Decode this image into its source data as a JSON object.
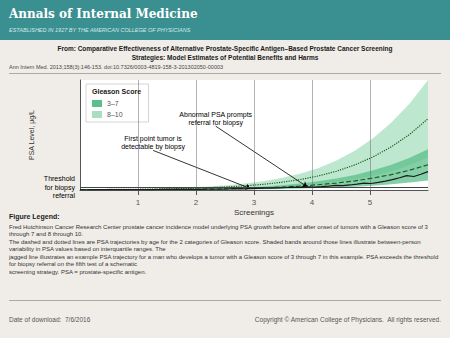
{
  "chart_data": {
    "type": "line",
    "header_title": "Annals of Internal Medicine",
    "header_subtitle": "ESTABLISHED IN 1927 BY THE AMERICAN COLLEGE OF PHYSICIANS",
    "title_lines": [
      "From: Comparative Effectiveness of Alternative Prostate-Specific Antigen–Based Prostate Cancer Screening",
      "Strategies: Model Estimates of Potential Benefits and Harms"
    ],
    "citation": "Ann Intern Med. 2013;158(3):146-153. doi:10.7326/0003-4819-158-3-201302050-00003",
    "xlabel": "Screenings",
    "ylabel": "PSA Level, μg/L",
    "xlim": [
      0,
      6
    ],
    "xticks": [
      1,
      2,
      3,
      4,
      5
    ],
    "ylim": [
      0,
      14
    ],
    "tick_labels": "x",
    "grid": false,
    "legend": "upper left",
    "legend_title": "Gleason Score",
    "background_color": "#f0ede8",
    "header_color": "#3a9090",
    "separator_color": "#aaaaaa",
    "screening_line_color": "#666666",
    "threshold": {
      "value": 0.38,
      "label_lines": [
        "Threshold",
        "for biopsy",
        "referral"
      ],
      "color": "#444444"
    },
    "annotations": [
      "Abnormal PSA prompts\nreferral for biopsy",
      "First point tumor is\ndetectable by biopsy"
    ],
    "series": [
      {
        "name": "3–7",
        "type": "band",
        "color": "#5bbf8a",
        "x": [
          0,
          0.315789,
          0.631579,
          0.947368,
          1.263158,
          1.578947,
          1.894737,
          2.210526,
          2.526316,
          2.842105,
          3.157895,
          3.473684,
          3.789474,
          4.105263,
          4.421053,
          4.736842,
          5.052632,
          5.368421,
          5.684211,
          6
        ],
        "lower": [
          0.02,
          0.02,
          0.02,
          0.03,
          0.03,
          0.04,
          0.04,
          0.05,
          0.06,
          0.08,
          0.1,
          0.14,
          0.18,
          0.24,
          0.32,
          0.42,
          0.55,
          0.72,
          0.94,
          1.22
        ],
        "upper": [
          0.06,
          0.07,
          0.08,
          0.09,
          0.1,
          0.12,
          0.15,
          0.18,
          0.24,
          0.32,
          0.44,
          0.6,
          0.82,
          1.1,
          1.45,
          1.9,
          2.5,
          3.2,
          4.1,
          5.2
        ]
      },
      {
        "name": "8–10",
        "type": "band",
        "color": "#a8dfc0",
        "x": [
          0,
          0.315789,
          0.631579,
          0.947368,
          1.263158,
          1.578947,
          1.894737,
          2.210526,
          2.526316,
          2.842105,
          3.157895,
          3.473684,
          3.789474,
          4.105263,
          4.421053,
          4.736842,
          5.052632,
          5.368421,
          5.684211,
          6
        ],
        "lower": [
          0.03,
          0.03,
          0.04,
          0.05,
          0.06,
          0.08,
          0.1,
          0.14,
          0.18,
          0.24,
          0.32,
          0.44,
          0.58,
          0.78,
          1.04,
          1.38,
          1.82,
          2.4,
          3.16,
          4.14
        ],
        "upper": [
          0.08,
          0.09,
          0.11,
          0.14,
          0.18,
          0.24,
          0.32,
          0.44,
          0.6,
          0.82,
          1.12,
          1.52,
          2.06,
          2.78,
          3.74,
          5.0,
          6.6,
          8.6,
          11.0,
          14.0
        ]
      },
      {
        "type": "line",
        "line_style": "dashed",
        "color": "#1a5c1a",
        "x": [
          0,
          0.315789,
          0.631579,
          0.947368,
          1.263158,
          1.578947,
          1.894737,
          2.210526,
          2.526316,
          2.842105,
          3.157895,
          3.473684,
          3.789474,
          4.105263,
          4.421053,
          4.736842,
          5.052632,
          5.368421,
          5.684211,
          6
        ],
        "values": [
          0.04,
          0.04,
          0.05,
          0.06,
          0.065,
          0.08,
          0.09,
          0.11,
          0.15,
          0.2,
          0.27,
          0.37,
          0.5,
          0.67,
          0.88,
          1.16,
          1.52,
          1.96,
          2.52,
          3.21
        ]
      },
      {
        "type": "line",
        "line_style": "dotted",
        "color": "#1a5c1a",
        "x": [
          0,
          0.315789,
          0.631579,
          0.947368,
          1.263158,
          1.578947,
          1.894737,
          2.210526,
          2.526316,
          2.842105,
          3.157895,
          3.473684,
          3.789474,
          4.105263,
          4.421053,
          4.736842,
          5.052632,
          5.368421,
          5.684211,
          6
        ],
        "values": [
          0.05,
          0.06,
          0.075,
          0.095,
          0.12,
          0.16,
          0.21,
          0.29,
          0.39,
          0.53,
          0.72,
          0.98,
          1.32,
          1.78,
          2.39,
          3.19,
          4.21,
          5.5,
          7.08,
          9.07
        ]
      },
      {
        "type": "line",
        "line_style": "solid",
        "color": "#1a1a1a",
        "x": [
          0,
          0.122449,
          0.244898,
          0.367347,
          0.489796,
          0.612245,
          0.734694,
          0.857143,
          0.979592,
          1.102041,
          1.22449,
          1.346939,
          1.469388,
          1.591837,
          1.714286,
          1.836735,
          1.959184,
          2.081633,
          2.204082,
          2.326531,
          2.44898,
          2.571429,
          2.693878,
          2.816327,
          2.938776,
          3.061224,
          3.183673,
          3.306122,
          3.428571,
          3.55102,
          3.673469,
          3.795918,
          3.918367,
          4.040816,
          4.163265,
          4.285714,
          4.408163,
          4.530612,
          4.653061,
          4.77551,
          4.897959,
          5.020408,
          5.142857,
          5.265306,
          5.387755,
          5.510204,
          5.632653,
          5.755102,
          5.877551,
          6
        ],
        "values": [
          0.03,
          0.035,
          0.04,
          0.038,
          0.045,
          0.042,
          0.05,
          0.048,
          0.055,
          0.052,
          0.06,
          0.065,
          0.07,
          0.075,
          0.08,
          0.085,
          0.095,
          0.09,
          0.1,
          0.105,
          0.12,
          0.14,
          0.165,
          0.155,
          0.18,
          0.21,
          0.245,
          0.23,
          0.27,
          0.315,
          0.37,
          0.345,
          0.4,
          0.375,
          0.43,
          0.5,
          0.58,
          0.55,
          0.64,
          0.75,
          0.88,
          0.83,
          0.97,
          1.14,
          1.33,
          1.56,
          1.82,
          1.72,
          2.0,
          2.34
        ]
      }
    ],
    "figure_legend_title": "Figure Legend:",
    "figure_legend_texts": [
      "Fred Hutchinson Cancer Research Center prostate cancer incidence model underlying PSA growth before and after onset of tumors with a Gleason score of 3 through 7 and 8 through 10.",
      "The dashed and dotted lines are PSA trajectories by age for the 2 categories of Gleason score. Shaded bands around those lines illustrate between-person variability in PSA values based on interquartile ranges. The",
      "jagged line illustrates an example PSA trajectory for a man who develops a tumor with a Gleason score of 3 through 7 in this example. PSA exceeds the threshold for biopsy referral on the fifth test of a schematic",
      "screening strategy. PSA = prostate-specific antigen."
    ],
    "footer_date": "Date of download:  7/6/2016",
    "footer_copyright": "Copyright © American College of Physicians.  All rights reserved."
  }
}
